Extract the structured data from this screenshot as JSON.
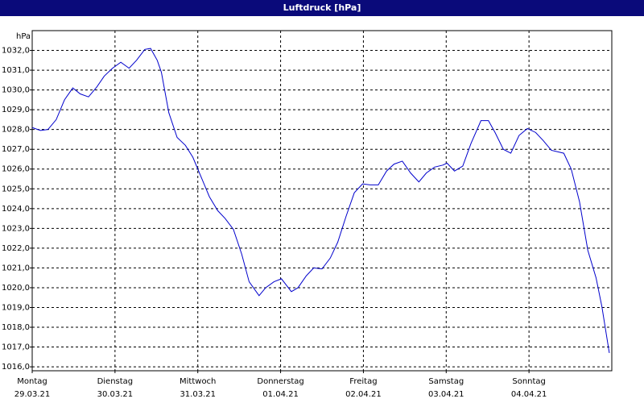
{
  "chart_data": {
    "type": "line",
    "title": "Luftdruck [hPa]",
    "y_unit_label": "hPa",
    "xlim": [
      0,
      7
    ],
    "ylim": [
      1015.8,
      1033
    ],
    "grid": true,
    "xticks": [
      {
        "value": 0,
        "label": "Montag",
        "date": "29.03.21"
      },
      {
        "value": 1,
        "label": "Dienstag",
        "date": "30.03.21"
      },
      {
        "value": 2,
        "label": "Mittwoch",
        "date": "31.03.21"
      },
      {
        "value": 3,
        "label": "Donnerstag",
        "date": "01.04.21"
      },
      {
        "value": 4,
        "label": "Freitag",
        "date": "02.04.21"
      },
      {
        "value": 5,
        "label": "Samstag",
        "date": "03.04.21"
      },
      {
        "value": 6,
        "label": "Sonntag",
        "date": "04.04.21"
      }
    ],
    "yticks": [
      {
        "value": 1016,
        "label": "1016,0"
      },
      {
        "value": 1017,
        "label": "1017,0"
      },
      {
        "value": 1018,
        "label": "1018,0"
      },
      {
        "value": 1019,
        "label": "1019,0"
      },
      {
        "value": 1020,
        "label": "1020,0"
      },
      {
        "value": 1021,
        "label": "1021,0"
      },
      {
        "value": 1022,
        "label": "1022,0"
      },
      {
        "value": 1023,
        "label": "1023,0"
      },
      {
        "value": 1024,
        "label": "1024,0"
      },
      {
        "value": 1025,
        "label": "1025,0"
      },
      {
        "value": 1026,
        "label": "1026,0"
      },
      {
        "value": 1027,
        "label": "1027,0"
      },
      {
        "value": 1028,
        "label": "1028,0"
      },
      {
        "value": 1029,
        "label": "1029,0"
      },
      {
        "value": 1030,
        "label": "1030,0"
      },
      {
        "value": 1031,
        "label": "1031,0"
      },
      {
        "value": 1032,
        "label": "1032,0"
      }
    ],
    "x": [
      0,
      0.1,
      0.19,
      0.29,
      0.39,
      0.49,
      0.58,
      0.68,
      0.78,
      0.87,
      0.97,
      1.07,
      1.17,
      1.26,
      1.36,
      1.43,
      1.51,
      1.56,
      1.65,
      1.75,
      1.85,
      1.94,
      2.04,
      2.14,
      2.24,
      2.33,
      2.43,
      2.53,
      2.62,
      2.74,
      2.82,
      2.92,
      3.01,
      3.13,
      3.21,
      3.31,
      3.4,
      3.5,
      3.6,
      3.69,
      3.79,
      3.89,
      3.99,
      4.08,
      4.18,
      4.28,
      4.37,
      4.47,
      4.57,
      4.67,
      4.76,
      4.86,
      4.96,
      5.01,
      5.1,
      5.2,
      5.3,
      5.42,
      5.51,
      5.59,
      5.69,
      5.78,
      5.88,
      5.98,
      6.08,
      6.17,
      6.27,
      6.42,
      6.51,
      6.61,
      6.71,
      6.81,
      6.88,
      6.97
    ],
    "series": [
      {
        "name": "Luftdruck",
        "color": "#0000cc",
        "values": [
          1028.1,
          1027.95,
          1028.0,
          1028.5,
          1029.5,
          1030.1,
          1029.8,
          1029.65,
          1030.15,
          1030.7,
          1031.1,
          1031.4,
          1031.1,
          1031.5,
          1032.05,
          1032.1,
          1031.5,
          1030.9,
          1028.85,
          1027.6,
          1027.2,
          1026.6,
          1025.6,
          1024.6,
          1023.9,
          1023.5,
          1022.95,
          1021.7,
          1020.3,
          1019.6,
          1020.0,
          1020.3,
          1020.45,
          1019.8,
          1020.0,
          1020.6,
          1021.0,
          1020.95,
          1021.5,
          1022.3,
          1023.6,
          1024.8,
          1025.25,
          1025.2,
          1025.2,
          1025.9,
          1026.25,
          1026.4,
          1025.8,
          1025.35,
          1025.8,
          1026.1,
          1026.2,
          1026.3,
          1025.9,
          1026.15,
          1027.3,
          1028.45,
          1028.45,
          1027.85,
          1027.0,
          1026.8,
          1027.7,
          1028.05,
          1027.85,
          1027.45,
          1026.95,
          1026.8,
          1026.0,
          1024.35,
          1021.9,
          1020.5,
          1019.05,
          1016.7
        ]
      }
    ]
  }
}
